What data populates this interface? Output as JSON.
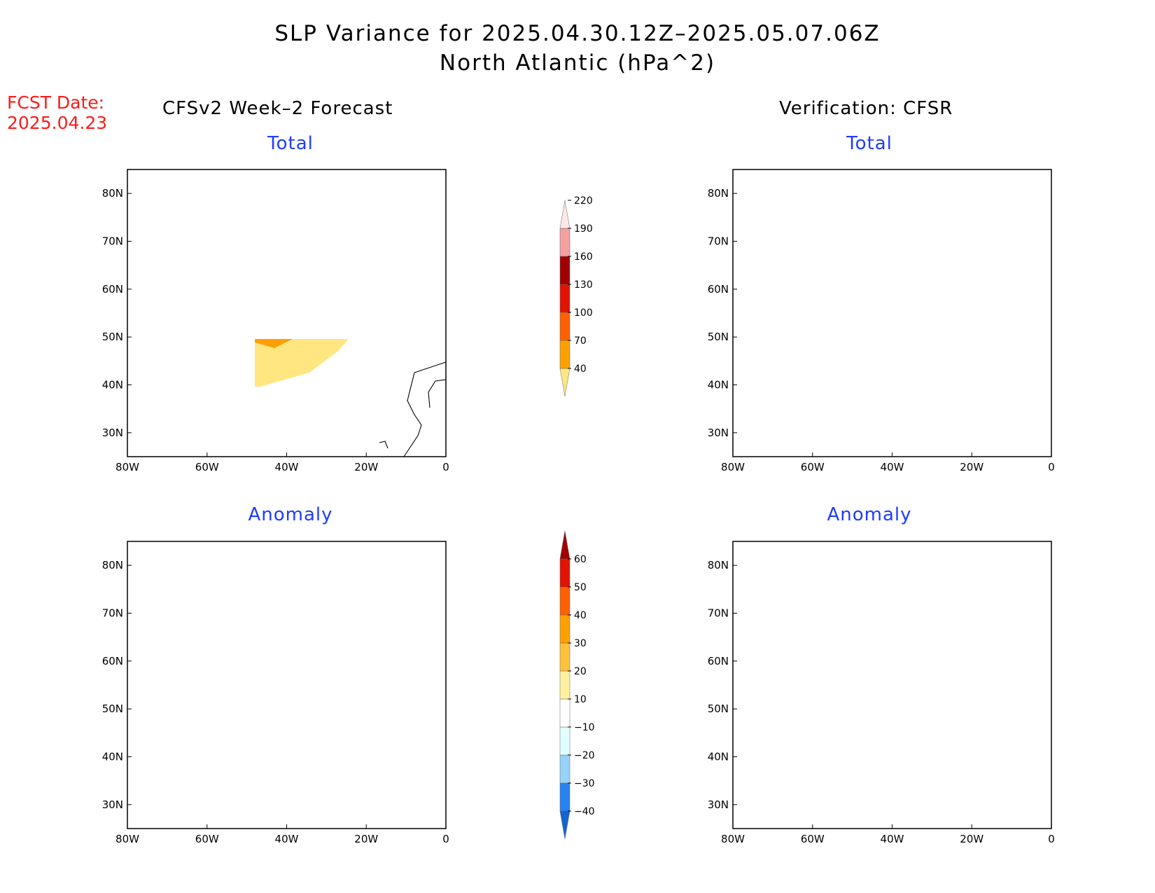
{
  "header": {
    "title_line1": "SLP Variance for 2025.04.30.12Z–2025.05.07.06Z",
    "title_line2": "North Atlantic (hPa^2)",
    "fcst_label": "FCST Date:",
    "fcst_date": "2025.04.23"
  },
  "columns": {
    "left_title": "CFSv2 Week–2 Forecast",
    "right_title": "Verification: CFSR"
  },
  "panels": {
    "total_label": "Total",
    "anomaly_label": "Anomaly"
  },
  "axes": {
    "lon_ticks": [
      "80W",
      "60W",
      "40W",
      "20W",
      "0"
    ],
    "lat_ticks": [
      "30N",
      "40N",
      "50N",
      "60N",
      "70N",
      "80N"
    ]
  },
  "colorbars": {
    "total": {
      "levels": [
        "40",
        "70",
        "100",
        "130",
        "160",
        "190",
        "220"
      ],
      "colors": [
        "#ffe680",
        "#ffa000",
        "#ff6000",
        "#e01400",
        "#a00000",
        "#f4a0a0",
        "#fde8e8"
      ]
    },
    "anomaly": {
      "levels": [
        "−40",
        "−30",
        "−20",
        "−10",
        "10",
        "20",
        "30",
        "40",
        "50",
        "60"
      ],
      "colors": [
        "#1464d2",
        "#2882f0",
        "#96d2fa",
        "#e1ffff",
        "#ffffff",
        "#fff0a0",
        "#ffc03c",
        "#ffa000",
        "#ff6000",
        "#e01400",
        "#a00000"
      ]
    }
  },
  "map": {
    "region": "North Atlantic",
    "lon_range": [
      "80W",
      "0"
    ],
    "lat_range": [
      "25N",
      "85N"
    ],
    "variable": "SLP variance"
  }
}
